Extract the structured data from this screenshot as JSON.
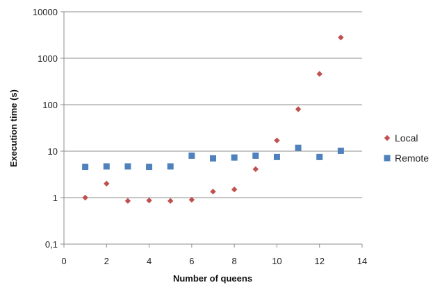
{
  "chart_data": {
    "type": "scatter",
    "title": "",
    "xlabel": "Number of queens",
    "ylabel": "Execution time (s)",
    "xlim": [
      0,
      14
    ],
    "ylim": [
      0.1,
      10000
    ],
    "yscale": "log",
    "x_ticks": [
      0,
      2,
      4,
      6,
      8,
      10,
      12,
      14
    ],
    "x_tick_labels": [
      "0",
      "2",
      "4",
      "6",
      "8",
      "10",
      "12",
      "14"
    ],
    "y_ticks": [
      0.1,
      1,
      10,
      100,
      1000,
      10000
    ],
    "y_tick_labels": [
      "0,1",
      "1",
      "10",
      "100",
      "1000",
      "10000"
    ],
    "grid": "horizontal",
    "legend_position": "right",
    "series": [
      {
        "name": "Local",
        "marker": "diamond",
        "color": "#c0504d",
        "x": [
          1,
          2,
          3,
          4,
          5,
          6,
          7,
          8,
          9,
          10,
          11,
          12,
          13
        ],
        "y": [
          1.0,
          2.0,
          0.85,
          0.87,
          0.85,
          0.9,
          1.35,
          1.5,
          4.1,
          17,
          80,
          460,
          2800
        ]
      },
      {
        "name": "Remote",
        "marker": "square",
        "color": "#4f81bd",
        "x": [
          1,
          2,
          3,
          4,
          5,
          6,
          7,
          8,
          9,
          10,
          11,
          12,
          13
        ],
        "y": [
          4.6,
          4.7,
          4.7,
          4.6,
          4.7,
          8.0,
          7.0,
          7.3,
          8.0,
          7.5,
          11.8,
          7.5,
          10.2
        ]
      }
    ]
  }
}
